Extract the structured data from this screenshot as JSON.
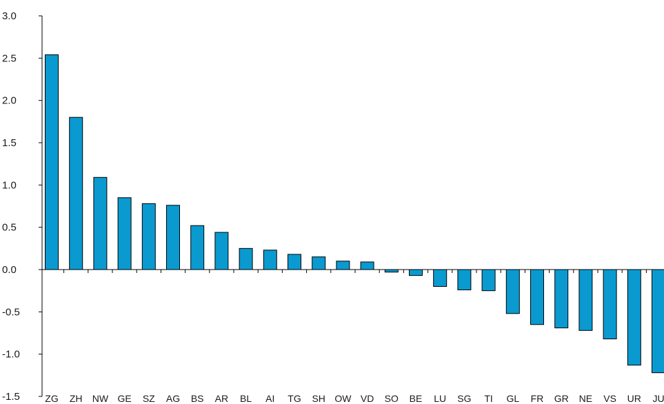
{
  "chart_data": {
    "type": "bar",
    "title": "",
    "xlabel": "",
    "ylabel": "",
    "categories": [
      "ZG",
      "ZH",
      "NW",
      "GE",
      "SZ",
      "AG",
      "BS",
      "AR",
      "BL",
      "AI",
      "TG",
      "SH",
      "OW",
      "VD",
      "SO",
      "BE",
      "LU",
      "SG",
      "TI",
      "GL",
      "FR",
      "GR",
      "NE",
      "VS",
      "UR",
      "JU"
    ],
    "values": [
      2.54,
      1.8,
      1.09,
      0.85,
      0.78,
      0.76,
      0.52,
      0.44,
      0.25,
      0.23,
      0.18,
      0.15,
      0.1,
      0.09,
      -0.03,
      -0.07,
      -0.2,
      -0.24,
      -0.25,
      -0.52,
      -0.65,
      -0.69,
      -0.72,
      -0.82,
      -1.13,
      -1.22
    ],
    "ylim": [
      -1.5,
      3.0
    ],
    "yticks": [
      3.0,
      2.5,
      2.0,
      1.5,
      1.0,
      0.5,
      0.0,
      -0.5,
      -1.0,
      -1.5
    ],
    "ytick_labels": [
      "3.0",
      "2.5",
      "2.0",
      "1.5",
      "1.0",
      "0.5",
      "0.0",
      "-0.5",
      "-1.0",
      "-1.5"
    ],
    "grid": false,
    "legend": "none",
    "bar_color": "#0a9ad0",
    "bar_edge_color": "#000000"
  }
}
